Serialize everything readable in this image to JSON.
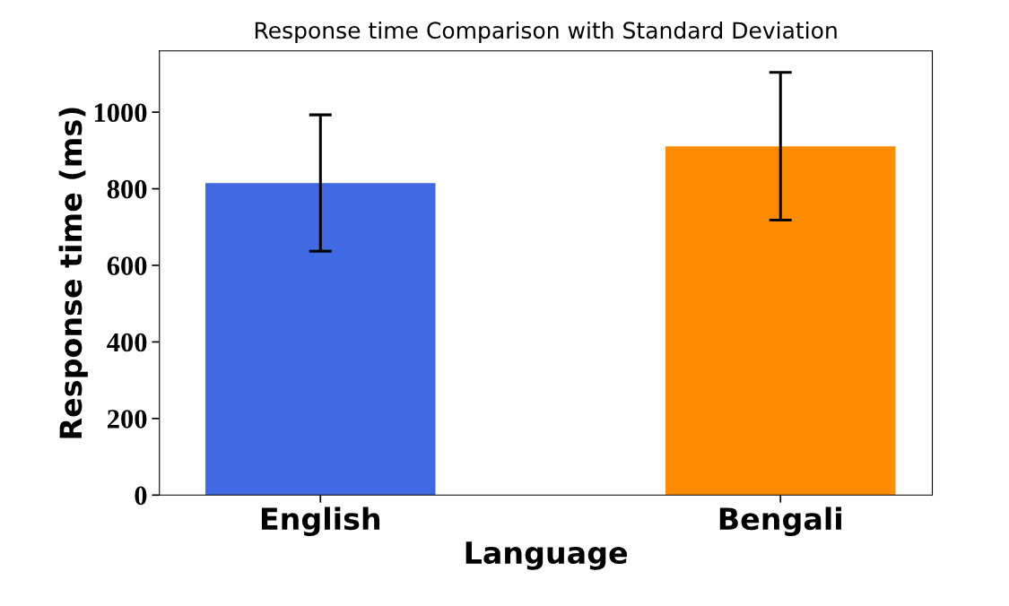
{
  "chart_data": {
    "type": "bar",
    "title": "Response time Comparison with Standard Deviation",
    "xlabel": "Language",
    "ylabel": "Response time (ms)",
    "categories": [
      "English",
      "Bengali"
    ],
    "values": [
      815,
      911
    ],
    "colors": [
      "#4169e1",
      "#ff8c00"
    ],
    "errors": [
      178,
      193
    ],
    "ylim": [
      0,
      1160
    ],
    "yticks": [
      0,
      200,
      400,
      600,
      800,
      1000
    ],
    "grid": false,
    "legend": false
  }
}
